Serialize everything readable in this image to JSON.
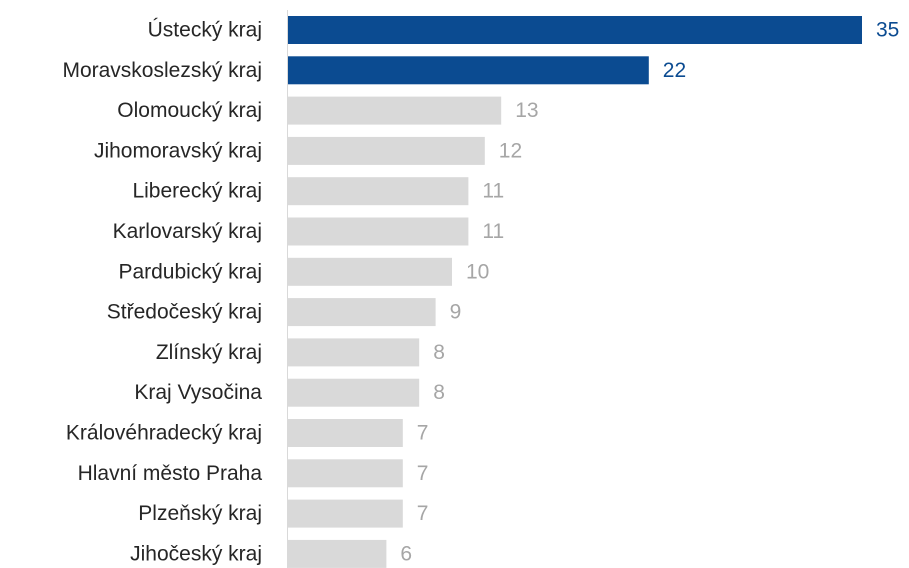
{
  "chart_data": {
    "type": "bar",
    "orientation": "horizontal",
    "categories": [
      "Ústecký kraj",
      "Moravskoslezský kraj",
      "Olomoucký kraj",
      "Jihomoravský kraj",
      "Liberecký kraj",
      "Karlovarský kraj",
      "Pardubický kraj",
      "Středočeský kraj",
      "Zlínský kraj",
      "Kraj Vysočina",
      "Královéhradecký kraj",
      "Hlavní město Praha",
      "Plzeňský kraj",
      "Jihočeský kraj"
    ],
    "values": [
      35,
      22,
      13,
      12,
      11,
      11,
      10,
      9,
      8,
      8,
      7,
      7,
      7,
      6
    ],
    "data_labels": [
      "35",
      "22",
      "13",
      "12",
      "11",
      "11",
      "10",
      "9",
      "8",
      "8",
      "7",
      "7",
      "7",
      "6"
    ],
    "highlighted": [
      true,
      true,
      false,
      false,
      false,
      false,
      false,
      false,
      false,
      false,
      false,
      false,
      false,
      false
    ],
    "xlim": [
      0,
      35
    ],
    "title": "",
    "xlabel": "",
    "ylabel": "",
    "grid": false,
    "legend": "none",
    "colors": {
      "highlight": "#0b4b91",
      "default": "#d9d9d9",
      "highlight_label": "#0b4b91",
      "default_label": "#a6a6a6",
      "category_label": "#262626",
      "axis": "#d9d9d9"
    }
  }
}
